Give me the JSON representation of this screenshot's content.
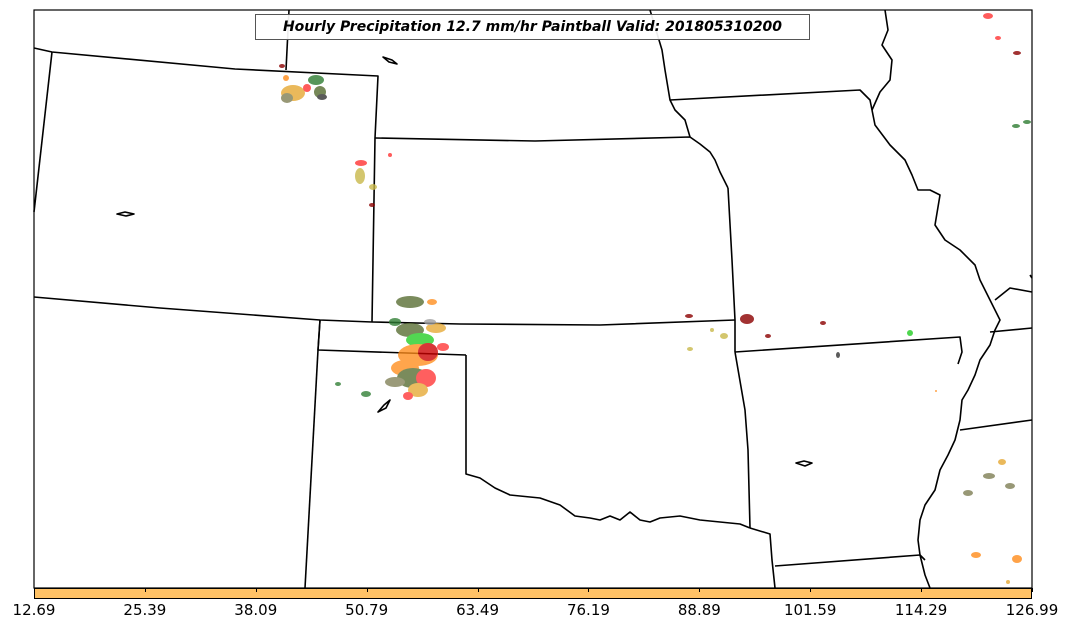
{
  "title": "Hourly Precipitation 12.7 mm/hr Paintball Valid: 201805310200",
  "colorbar": {
    "color": "#ffc266",
    "ticks": [
      "12.69",
      "25.39",
      "38.09",
      "50.79",
      "63.49",
      "76.19",
      "88.89",
      "101.59",
      "114.29",
      "126.99"
    ]
  },
  "paintball_colors": [
    "#ff3333",
    "#ff8c1a",
    "#e6a833",
    "#2e7d32",
    "#22cc22",
    "#556b2f",
    "#8b0000",
    "#9e9e9e",
    "#c9b84a",
    "#7f7f55"
  ]
}
